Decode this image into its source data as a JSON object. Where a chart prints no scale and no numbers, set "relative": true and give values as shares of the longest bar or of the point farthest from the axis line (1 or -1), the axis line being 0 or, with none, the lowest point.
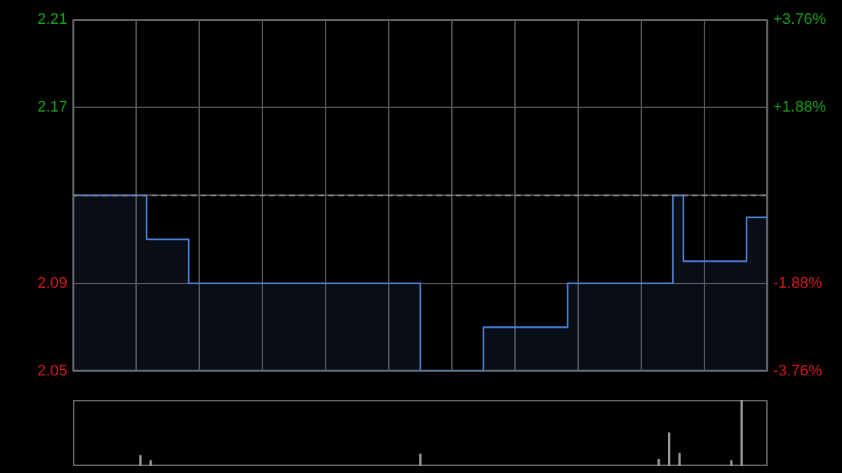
{
  "chart_data": [
    {
      "type": "step",
      "categories": [
        null,
        null,
        null,
        null,
        null,
        null,
        null,
        null,
        null,
        null,
        null,
        null,
        null,
        null,
        null,
        null,
        null,
        null,
        null,
        null,
        null,
        null,
        null,
        null,
        null,
        null,
        null,
        null,
        null,
        null,
        null,
        null,
        null,
        null,
        null,
        null,
        null,
        null,
        null,
        null,
        null,
        null,
        null,
        null,
        null,
        null,
        null,
        null,
        null,
        null,
        null,
        null,
        null,
        null,
        null,
        null,
        null,
        null,
        null,
        null,
        null,
        null,
        null,
        null,
        null,
        null,
        null
      ],
      "series": [
        {
          "type": "area",
          "color": "#4a7fd4",
          "values": [
            2.13,
            2.13,
            2.13,
            2.13,
            2.13,
            2.13,
            2.13,
            2.11,
            2.11,
            2.11,
            2.11,
            2.09,
            2.09,
            2.09,
            2.09,
            2.09,
            2.09,
            2.09,
            2.09,
            2.09,
            2.09,
            2.09,
            2.09,
            2.09,
            2.09,
            2.09,
            2.09,
            2.09,
            2.09,
            2.09,
            2.09,
            2.09,
            2.09,
            2.05,
            2.05,
            2.05,
            2.05,
            2.05,
            2.05,
            2.07,
            2.07,
            2.07,
            2.07,
            2.07,
            2.07,
            2.07,
            2.07,
            2.09,
            2.09,
            2.09,
            2.09,
            2.09,
            2.09,
            2.09,
            2.09,
            2.09,
            2.09,
            2.13,
            2.1,
            2.1,
            2.1,
            2.1,
            2.1,
            2.1,
            2.12,
            2.12,
            2.12
          ]
        }
      ],
      "ylim": [
        2.05,
        2.21
      ],
      "yticks": [
        2.05,
        2.09,
        {
          "value": 2.13,
          "label": null
        },
        2.17,
        2.21
      ],
      "y2lim": [
        -3.76,
        3.76
      ],
      "y2ticks": [
        {
          "value": -3.76,
          "label": "-3.76%"
        },
        {
          "value": -1.88,
          "label": "-1.88%"
        },
        {
          "value": 0,
          "label": null
        },
        {
          "value": 1.88,
          "label": "+1.88%"
        },
        {
          "value": 3.76,
          "label": "+3.76%"
        }
      ],
      "ref_lines": [
        {
          "axis": "y",
          "value": 2.13,
          "line_style": "dashed"
        }
      ],
      "grid": true,
      "legend": false,
      "tick_labels": "y"
    },
    {
      "type": "bar",
      "relative": true,
      "categories": [
        null,
        null,
        null,
        null,
        null,
        null,
        null,
        null,
        null,
        null,
        null,
        null,
        null,
        null,
        null,
        null,
        null,
        null,
        null,
        null,
        null,
        null,
        null,
        null,
        null,
        null,
        null,
        null,
        null,
        null,
        null,
        null,
        null,
        null,
        null,
        null,
        null,
        null,
        null,
        null,
        null,
        null,
        null,
        null,
        null,
        null,
        null,
        null,
        null,
        null,
        null,
        null,
        null,
        null,
        null,
        null,
        null,
        null,
        null,
        null,
        null,
        null,
        null,
        null,
        null,
        null,
        null
      ],
      "values": [
        null,
        null,
        null,
        null,
        null,
        null,
        0.16,
        0.08,
        null,
        null,
        null,
        null,
        null,
        null,
        null,
        null,
        null,
        null,
        null,
        null,
        null,
        null,
        null,
        null,
        null,
        null,
        null,
        null,
        null,
        null,
        null,
        null,
        null,
        0.18,
        null,
        null,
        null,
        null,
        null,
        null,
        null,
        null,
        null,
        null,
        null,
        null,
        null,
        null,
        null,
        null,
        null,
        null,
        null,
        null,
        null,
        null,
        0.1,
        0.5,
        0.19,
        null,
        null,
        null,
        null,
        0.08,
        1,
        null,
        null
      ],
      "color": "#9a9a9a",
      "grid": false,
      "legend": false,
      "tick_labels": false
    }
  ]
}
